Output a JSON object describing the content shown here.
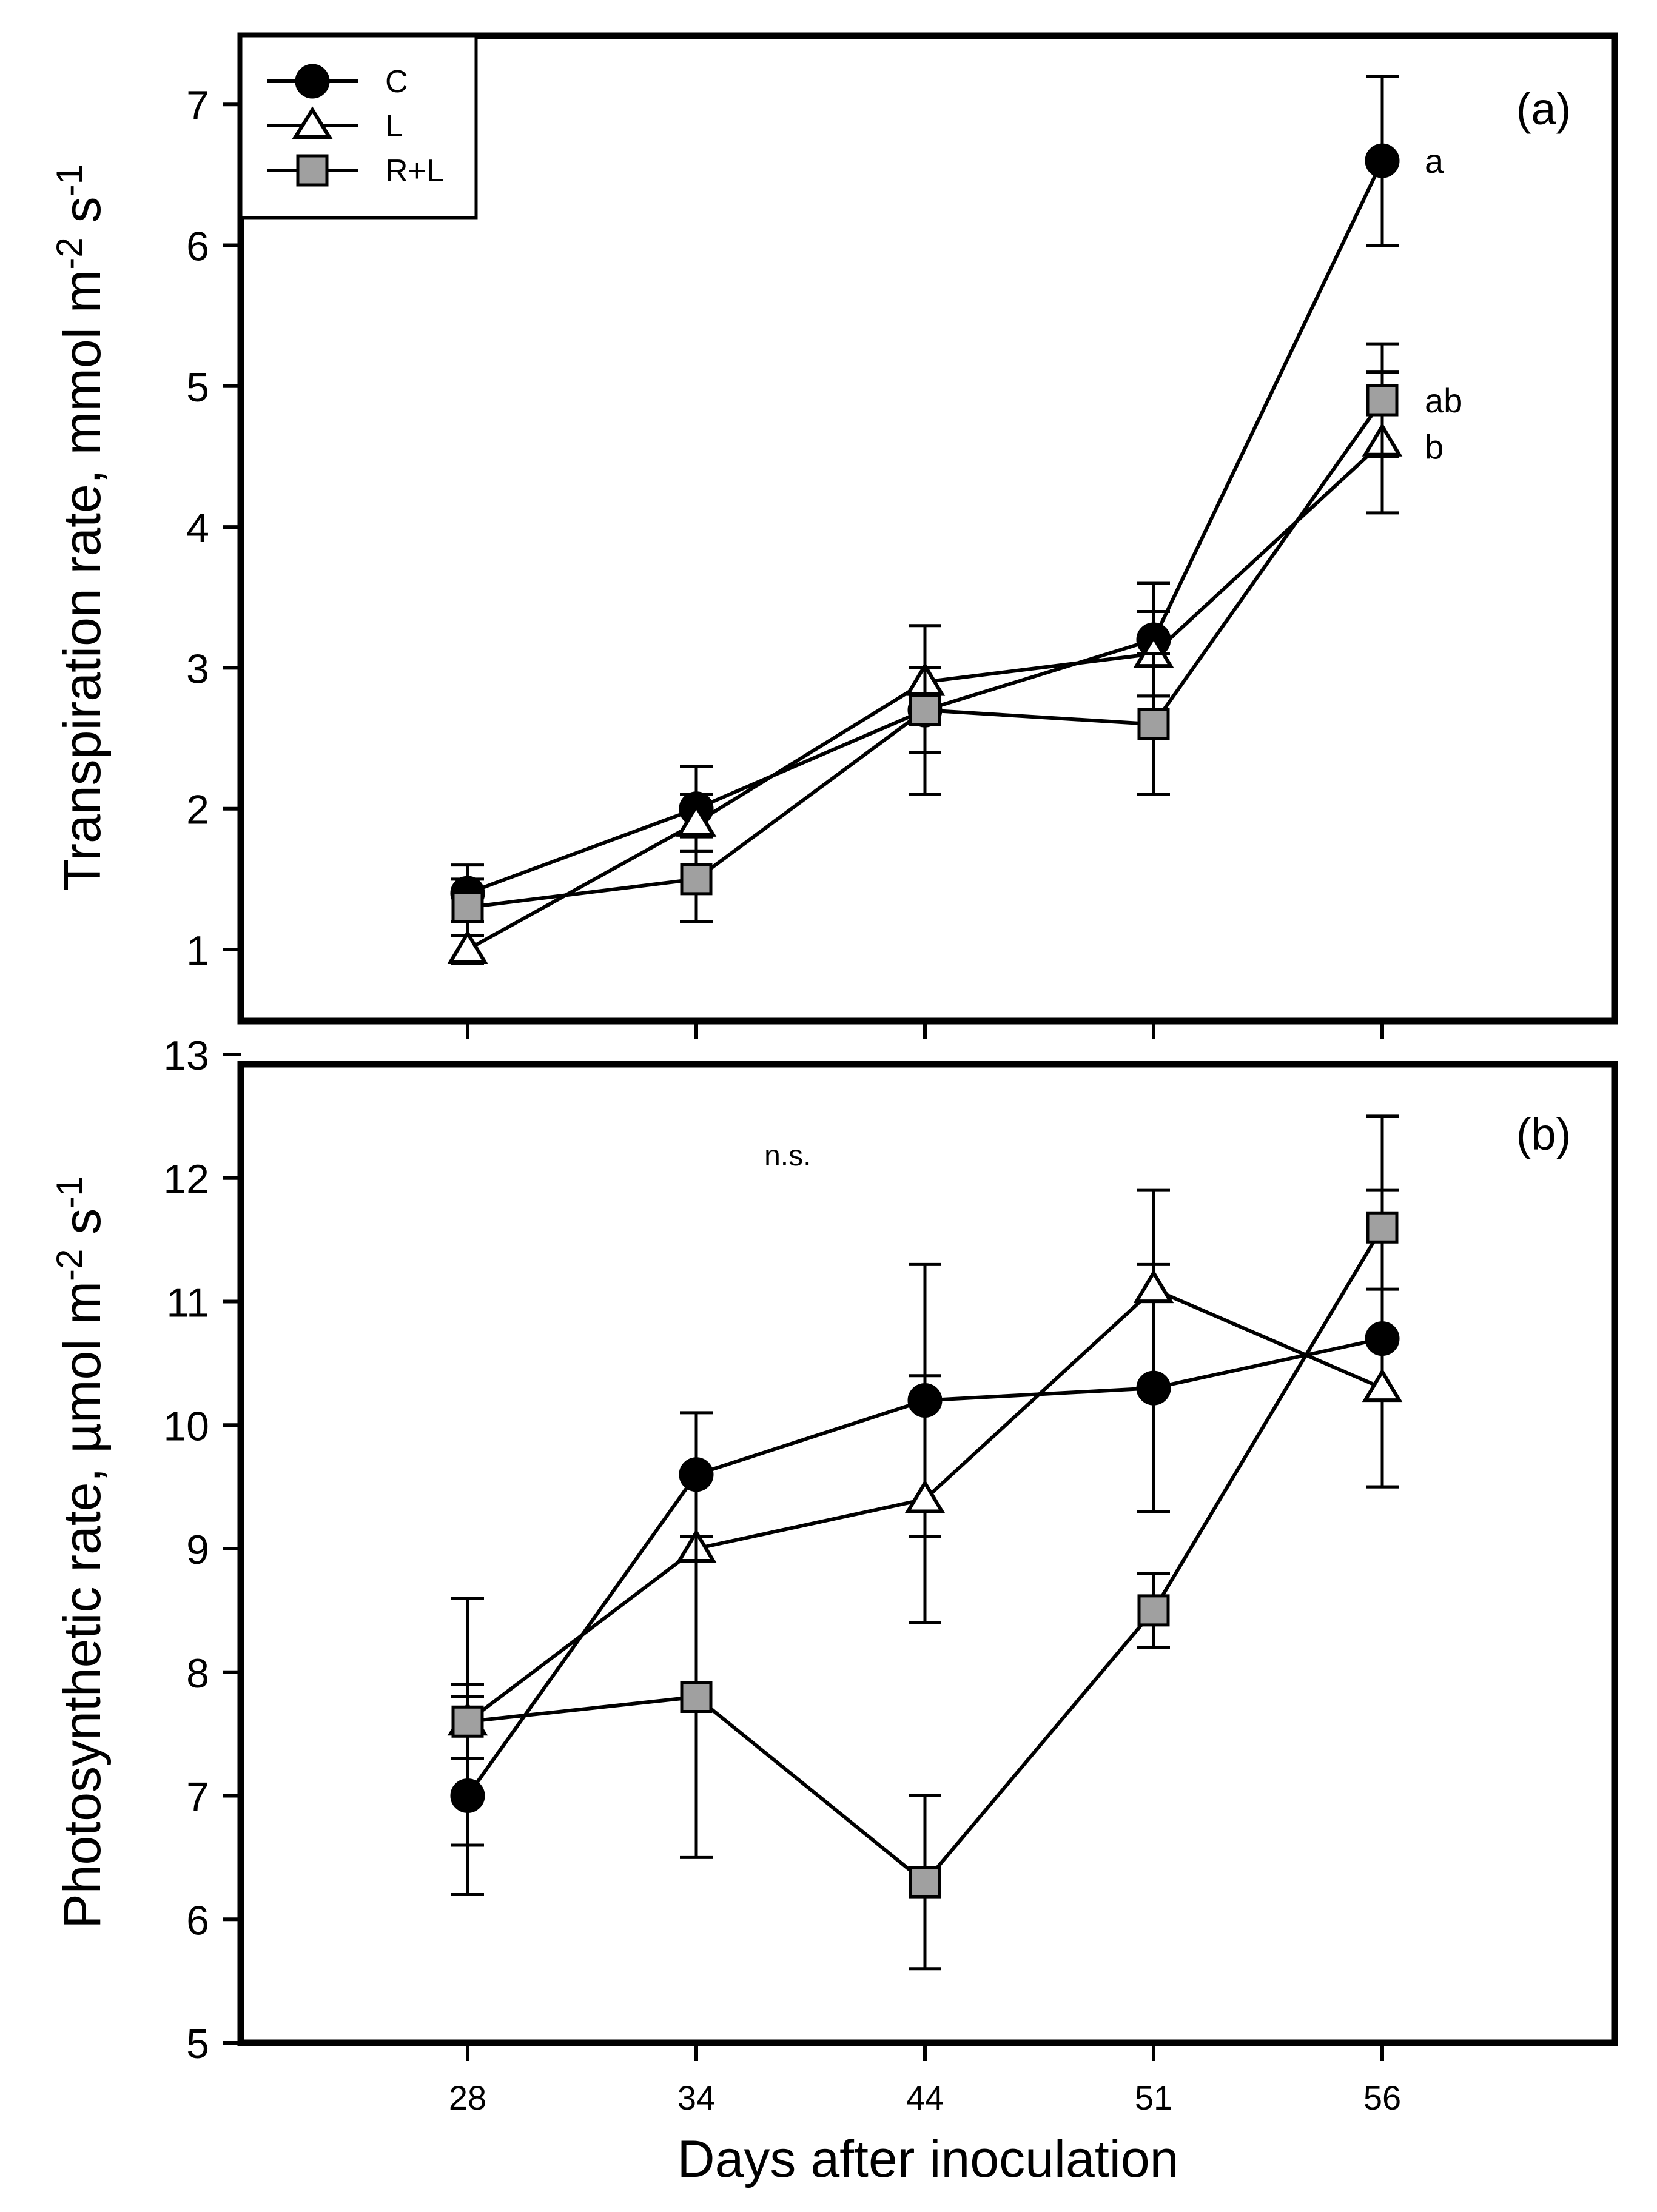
{
  "figure": {
    "xlabel": "Days after inoculation"
  },
  "chart_data": [
    {
      "type": "line",
      "panel_label": "(a)",
      "ylabel": "Transpiration rate, mmol m",
      "ylabel_sup1": "-2",
      "ylabel_mid": " s",
      "ylabel_sup2": "-1",
      "x": [
        28,
        34,
        44,
        51,
        56
      ],
      "xlim": [
        28,
        56
      ],
      "ylim": [
        0.5,
        7.5
      ],
      "yticks": [
        1,
        2,
        3,
        4,
        5,
        6,
        7
      ],
      "grid": false,
      "legend": {
        "position": "top-left",
        "entries": [
          "C",
          "L",
          "R+L"
        ]
      },
      "series": [
        {
          "name": "C",
          "marker": "circle",
          "color": "#000000",
          "values": [
            1.4,
            2.0,
            2.7,
            3.2,
            6.6
          ],
          "errors": [
            0.2,
            0.3,
            0.6,
            0.4,
            0.6
          ]
        },
        {
          "name": "L",
          "marker": "triangle",
          "color": "#ffffff",
          "values": [
            1.0,
            1.9,
            2.9,
            3.1,
            4.6
          ],
          "errors": [
            0.1,
            0.2,
            0.1,
            0.3,
            0.5
          ]
        },
        {
          "name": "R+L",
          "marker": "square",
          "color": "#a0a0a0",
          "values": [
            1.3,
            1.5,
            2.7,
            2.6,
            4.9
          ],
          "errors": [
            0.2,
            0.3,
            0.3,
            0.5,
            0.4
          ]
        }
      ],
      "annotations": [
        {
          "text": "a",
          "x": 56,
          "y": 6.6
        },
        {
          "text": "ab",
          "x": 56,
          "y": 4.9
        },
        {
          "text": "b",
          "x": 56,
          "y": 4.57
        }
      ]
    },
    {
      "type": "line",
      "panel_label": "(b)",
      "ylabel": "Photosynthetic rate, µmol m",
      "ylabel_sup1": "-2",
      "ylabel_mid": " s",
      "ylabel_sup2": "-1",
      "x": [
        28,
        34,
        44,
        51,
        56
      ],
      "xticks": [
        "28",
        "34",
        "44",
        "51",
        "56"
      ],
      "xlim": [
        28,
        56
      ],
      "ylim": [
        5,
        13
      ],
      "yticks": [
        5,
        6,
        7,
        8,
        9,
        10,
        11,
        12,
        13
      ],
      "grid": false,
      "series": [
        {
          "name": "C",
          "marker": "circle",
          "color": "#000000",
          "values": [
            7.0,
            9.6,
            10.2,
            10.3,
            10.7
          ],
          "errors": [
            0.8,
            0.5,
            1.1,
            1.0,
            1.2
          ]
        },
        {
          "name": "L",
          "marker": "triangle",
          "color": "#ffffff",
          "values": [
            7.6,
            9.0,
            9.4,
            11.1,
            10.3
          ],
          "errors": [
            0.3,
            0.1,
            1.0,
            0.8,
            0.8
          ]
        },
        {
          "name": "R+L",
          "marker": "square",
          "color": "#a0a0a0",
          "values": [
            7.6,
            7.8,
            6.3,
            8.5,
            11.6
          ],
          "errors": [
            1.0,
            1.3,
            0.7,
            0.3,
            0.9
          ]
        }
      ],
      "annotations": [
        {
          "text": "n.s.",
          "x": 38,
          "y": 12.2
        }
      ]
    }
  ]
}
